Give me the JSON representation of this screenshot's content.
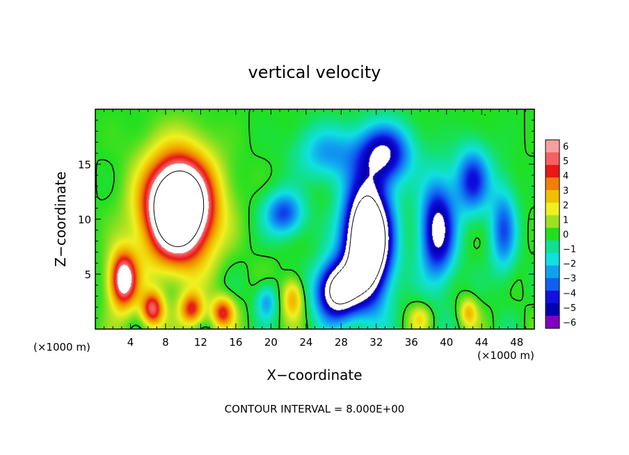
{
  "chart_data": {
    "type": "heatmap",
    "title": "vertical velocity",
    "xlabel": "X−coordinate",
    "ylabel": "Z−coordinate",
    "x_unit_left": "(×1000 m)",
    "x_unit_right": "(×1000 m)",
    "xlim": [
      0,
      50
    ],
    "ylim": [
      0,
      20
    ],
    "x_ticks": [
      4,
      8,
      12,
      16,
      20,
      24,
      28,
      32,
      36,
      40,
      44,
      48
    ],
    "x_tick_labels": [
      "4",
      "8",
      "12",
      "16",
      "20",
      "24",
      "28",
      "32",
      "36",
      "40",
      "44",
      "48"
    ],
    "y_ticks": [
      5,
      10,
      15
    ],
    "y_tick_labels": [
      "5",
      "10",
      "15"
    ],
    "colorbar": {
      "levels": [
        6,
        5,
        4,
        3,
        2,
        1,
        0,
        -1,
        -2,
        -3,
        -4,
        -5,
        -6
      ],
      "labels": [
        "6",
        "5",
        "4",
        "3",
        "2",
        "1",
        "0",
        "−1",
        "−2",
        "−3",
        "−4",
        "−5",
        "−6"
      ],
      "colors": [
        "#f7a0a0",
        "#f56060",
        "#e81818",
        "#f08000",
        "#f0c000",
        "#f0f020",
        "#a0e020",
        "#20e020",
        "#10e090",
        "#10e0e0",
        "#10a0f0",
        "#1060f0",
        "#1010e0",
        "#0000b0",
        "#8000c0"
      ],
      "range": [
        -6,
        6
      ]
    },
    "features": [
      {
        "x": 9.5,
        "z": 11.0,
        "sx": 3.8,
        "sz": 4.6,
        "amp": 14
      },
      {
        "x": 3.2,
        "z": 4.5,
        "sx": 1.6,
        "sz": 2.6,
        "amp": 8
      },
      {
        "x": 6.5,
        "z": 1.8,
        "sx": 1.3,
        "sz": 1.6,
        "amp": 6
      },
      {
        "x": 11.0,
        "z": 1.8,
        "sx": 1.4,
        "sz": 1.5,
        "amp": 5
      },
      {
        "x": 14.5,
        "z": 1.5,
        "sx": 1.3,
        "sz": 1.4,
        "amp": 5
      },
      {
        "x": 31.0,
        "z": 8.0,
        "sx": 2.6,
        "sz": 5.2,
        "amp": -14
      },
      {
        "x": 27.5,
        "z": 3.5,
        "sx": 2.4,
        "sz": 2.6,
        "amp": -9
      },
      {
        "x": 33.0,
        "z": 16.0,
        "sx": 3.0,
        "sz": 2.6,
        "amp": -6
      },
      {
        "x": 39.0,
        "z": 9.0,
        "sx": 2.0,
        "sz": 4.5,
        "amp": -7
      },
      {
        "x": 43.0,
        "z": 13.5,
        "sx": 2.0,
        "sz": 3.0,
        "amp": -5
      },
      {
        "x": 46.5,
        "z": 9.0,
        "sx": 1.5,
        "sz": 4.0,
        "amp": -4
      },
      {
        "x": 21.5,
        "z": 10.5,
        "sx": 2.2,
        "sz": 2.0,
        "amp": -4.5
      },
      {
        "x": 26.5,
        "z": 16.0,
        "sx": 3.5,
        "sz": 2.5,
        "amp": -3
      },
      {
        "x": 22.5,
        "z": 2.8,
        "sx": 1.2,
        "sz": 1.8,
        "amp": 3.5
      },
      {
        "x": 37.0,
        "z": 1.0,
        "sx": 1.2,
        "sz": 1.2,
        "amp": 2
      },
      {
        "x": 42.5,
        "z": 1.5,
        "sx": 1.0,
        "sz": 1.3,
        "amp": 3
      },
      {
        "x": 19.5,
        "z": 2.5,
        "sx": 1.2,
        "sz": 1.6,
        "amp": -3
      }
    ],
    "note": "CONTOUR INTERVAL = 8.000E+00"
  }
}
